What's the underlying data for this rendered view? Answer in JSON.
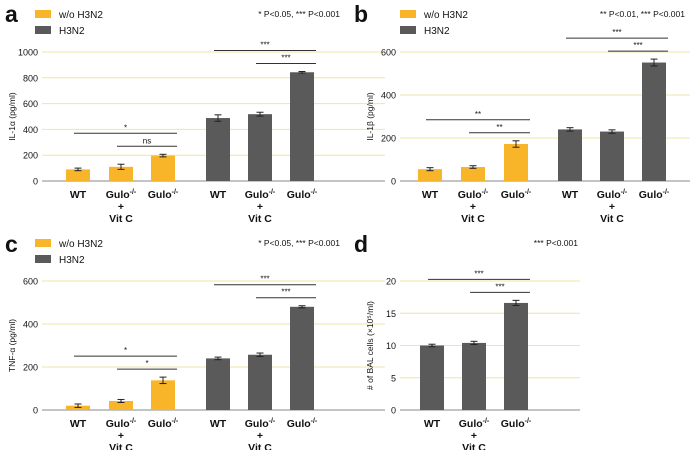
{
  "colors": {
    "wo": "#f8b52a",
    "h3n2": "#5a5a5a",
    "grid": "#f3e4a6",
    "axis": "#888888",
    "text": "#111111",
    "errbar": "#222222"
  },
  "panel_labels": [
    "a",
    "b",
    "c",
    "d"
  ],
  "legend": {
    "wo": "w/o H3N2",
    "h3n2": "H3N2"
  },
  "genotypes": [
    {
      "main": "WT",
      "sup": "",
      "extra": []
    },
    {
      "main": "Gulo",
      "sup": "-/-",
      "extra": [
        "+",
        "Vit C"
      ]
    },
    {
      "main": "Gulo",
      "sup": "-/-",
      "extra": []
    }
  ],
  "chart_data": [
    {
      "panel": "a",
      "type": "bar",
      "ylabel": "IL-1α (pg/ml)",
      "ylim": [
        0,
        1000
      ],
      "yticks": [
        0,
        200,
        400,
        600,
        800,
        1000
      ],
      "stats": "* P<0.05, *** P<0.001",
      "legend": true,
      "series": [
        {
          "name": "w/o H3N2",
          "values": [
            90,
            110,
            197
          ],
          "errors": [
            10,
            20,
            10
          ]
        },
        {
          "name": "H3N2",
          "values": [
            488,
            518,
            843
          ],
          "errors": [
            25,
            15,
            6
          ]
        }
      ],
      "brackets": [
        {
          "series": 0,
          "from": 0,
          "to": 2,
          "label": "*",
          "level": 2
        },
        {
          "series": 0,
          "from": 1,
          "to": 2,
          "label": "ns",
          "level": 1
        },
        {
          "series": 1,
          "from": 0,
          "to": 2,
          "label": "***",
          "level": 2
        },
        {
          "series": 1,
          "from": 1,
          "to": 2,
          "label": "***",
          "level": 1
        }
      ]
    },
    {
      "panel": "b",
      "type": "bar",
      "ylabel": "IL-1β (pg/ml)",
      "ylim": [
        0,
        600
      ],
      "yticks": [
        0,
        200,
        400,
        600
      ],
      "stats": "** P<0.01, *** P<0.001",
      "legend": true,
      "series": [
        {
          "name": "w/o H3N2",
          "values": [
            55,
            65,
            172
          ],
          "errors": [
            7,
            6,
            15
          ]
        },
        {
          "name": "H3N2",
          "values": [
            240,
            230,
            551
          ],
          "errors": [
            8,
            8,
            16
          ]
        }
      ],
      "brackets": [
        {
          "series": 0,
          "from": 0,
          "to": 2,
          "label": "**",
          "level": 2
        },
        {
          "series": 0,
          "from": 1,
          "to": 2,
          "label": "**",
          "level": 1
        },
        {
          "series": 1,
          "from": 0,
          "to": 2,
          "label": "***",
          "level": 2
        },
        {
          "series": 1,
          "from": 1,
          "to": 2,
          "label": "***",
          "level": 1
        }
      ]
    },
    {
      "panel": "c",
      "type": "bar",
      "ylabel": "TNF-α (pg/ml)",
      "ylim": [
        0,
        600
      ],
      "yticks": [
        0,
        200,
        400,
        600
      ],
      "stats": "* P<0.05, *** P<0.001",
      "legend": true,
      "series": [
        {
          "name": "w/o H3N2",
          "values": [
            20,
            42,
            138
          ],
          "errors": [
            8,
            7,
            15
          ]
        },
        {
          "name": "H3N2",
          "values": [
            240,
            257,
            480
          ],
          "errors": [
            6,
            8,
            5
          ]
        }
      ],
      "brackets": [
        {
          "series": 0,
          "from": 0,
          "to": 2,
          "label": "*",
          "level": 2
        },
        {
          "series": 0,
          "from": 1,
          "to": 2,
          "label": "*",
          "level": 1
        },
        {
          "series": 1,
          "from": 0,
          "to": 2,
          "label": "***",
          "level": 2
        },
        {
          "series": 1,
          "from": 1,
          "to": 2,
          "label": "***",
          "level": 1
        }
      ]
    },
    {
      "panel": "d",
      "type": "bar",
      "ylabel": "# of BAL cells (×10⁵/ml)",
      "ylim": [
        0,
        20
      ],
      "yticks": [
        0,
        5,
        10,
        15,
        20
      ],
      "stats": "*** P<0.001",
      "legend": false,
      "series": [
        {
          "name": "H3N2",
          "values": [
            10.0,
            10.4,
            16.6
          ],
          "errors": [
            0.2,
            0.25,
            0.4
          ]
        }
      ],
      "brackets": [
        {
          "series": 0,
          "from": 0,
          "to": 2,
          "label": "***",
          "level": 2
        },
        {
          "series": 0,
          "from": 1,
          "to": 2,
          "label": "***",
          "level": 1
        }
      ]
    }
  ]
}
